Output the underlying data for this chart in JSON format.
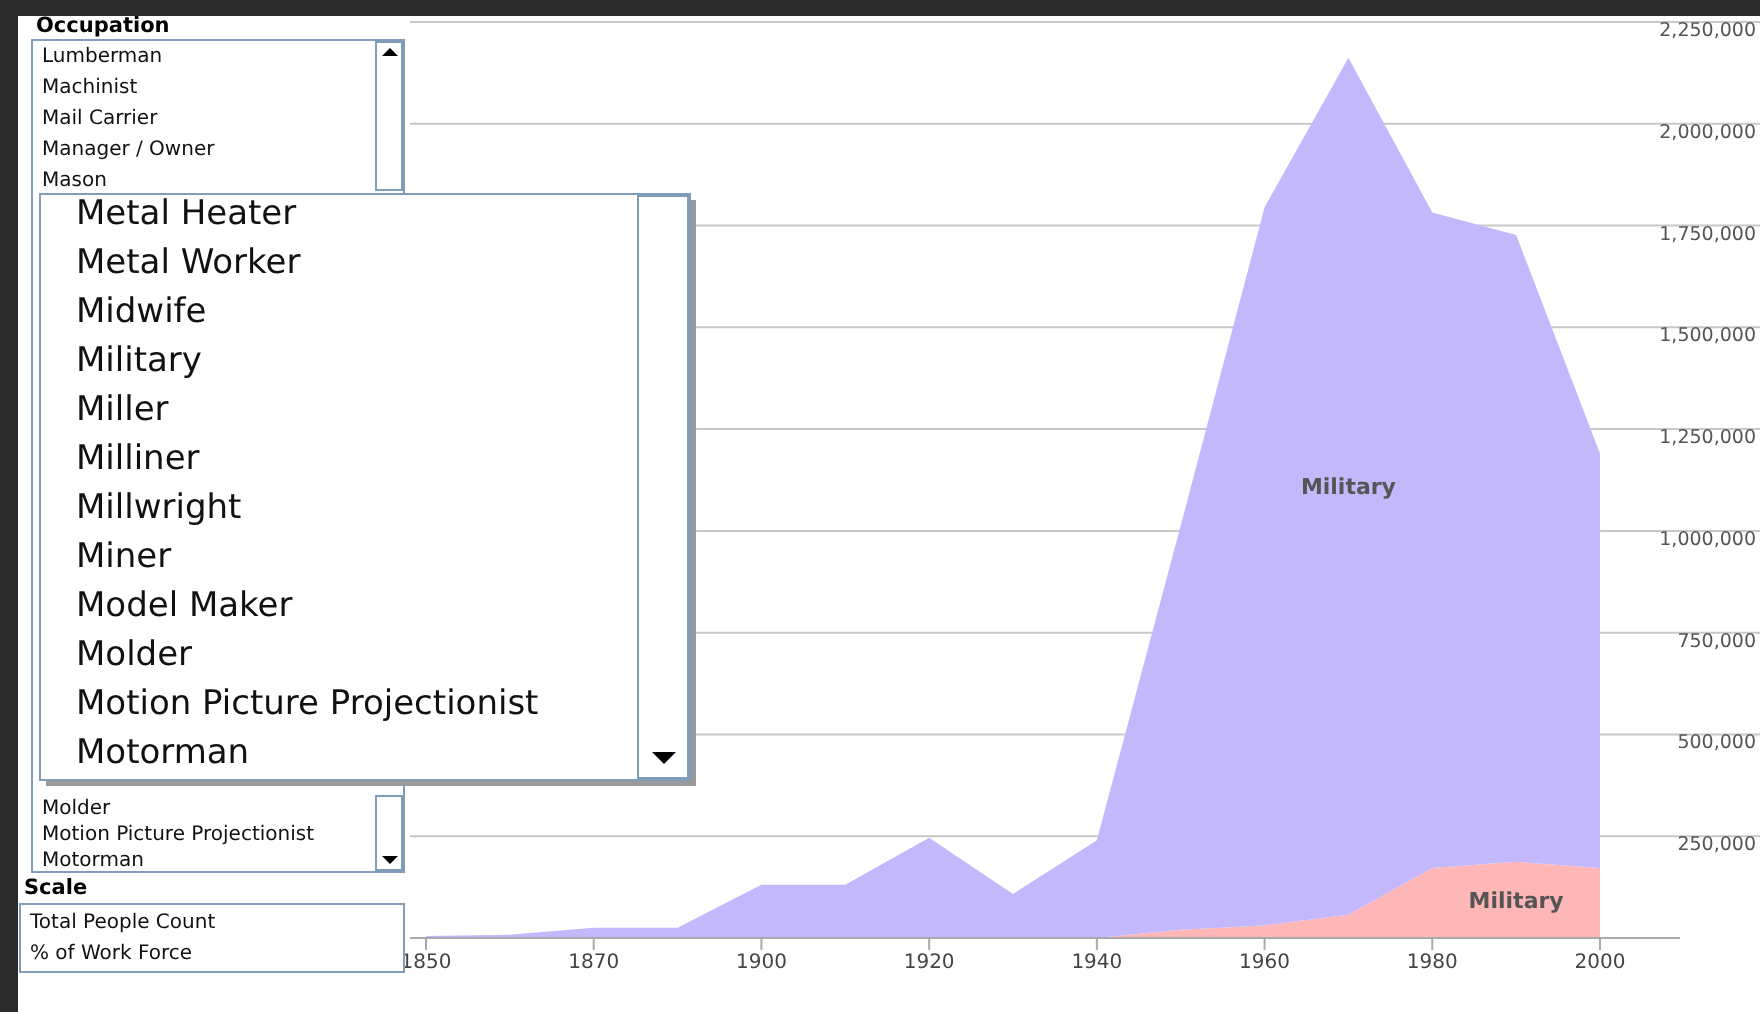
{
  "chart_data": [
    {
      "type": "other",
      "title": "Occupation",
      "annotations": [
        "Lumberman",
        "Machinist",
        "Mail Carrier",
        "Manager / Owner",
        "Mason"
      ]
    },
    {
      "type": "other",
      "annotations": [
        "Molder",
        "Motion Picture Projectionist",
        "Motorman"
      ]
    },
    {
      "type": "other",
      "annotations": [
        "Metal Heater",
        "Metal Worker",
        "Midwife",
        "Military",
        "Miller",
        "Milliner",
        "Millwright",
        "Miner",
        "Model Maker",
        "Molder",
        "Motion Picture Projectionist",
        "Motorman"
      ]
    },
    {
      "type": "other",
      "title": "Scale",
      "annotations": [
        "Total People Count",
        "% of Work Force"
      ]
    },
    {
      "type": "area",
      "stacked": true,
      "grid": "y",
      "legend": false,
      "categories": [
        "1850",
        null,
        "1870",
        null,
        "1900",
        null,
        "1920",
        null,
        "1940",
        null,
        "1960",
        null,
        "1980",
        null,
        "2000"
      ],
      "ylim": [
        0,
        2250000
      ],
      "yticks": [
        {
          "value": 250000,
          "label": "250,000"
        },
        {
          "value": 500000,
          "label": "500,000"
        },
        {
          "value": 750000,
          "label": "750,000"
        },
        {
          "value": 1000000,
          "label": "1,000,000"
        },
        {
          "value": 1250000,
          "label": "1,250,000"
        },
        {
          "value": 1500000,
          "label": "1,500,000"
        },
        {
          "value": 1750000,
          "label": "1,750,000"
        },
        {
          "value": 2000000,
          "label": "2,000,000"
        },
        {
          "value": 2250000,
          "label": "2,250,000"
        }
      ],
      "series": [
        {
          "name": "Military",
          "color": "#ffb6b6",
          "values": [
            0,
            0,
            0,
            0,
            0,
            0,
            0,
            0,
            0,
            20000,
            31000,
            57000,
            172000,
            187000,
            172000
          ]
        },
        {
          "name": "Military",
          "color": "#c4b8fc",
          "values": [
            5000,
            8000,
            25000,
            25000,
            131000,
            131000,
            246000,
            108000,
            240000,
            993000,
            1764000,
            2105000,
            1610000,
            1540000,
            1018000
          ]
        }
      ]
    }
  ]
}
